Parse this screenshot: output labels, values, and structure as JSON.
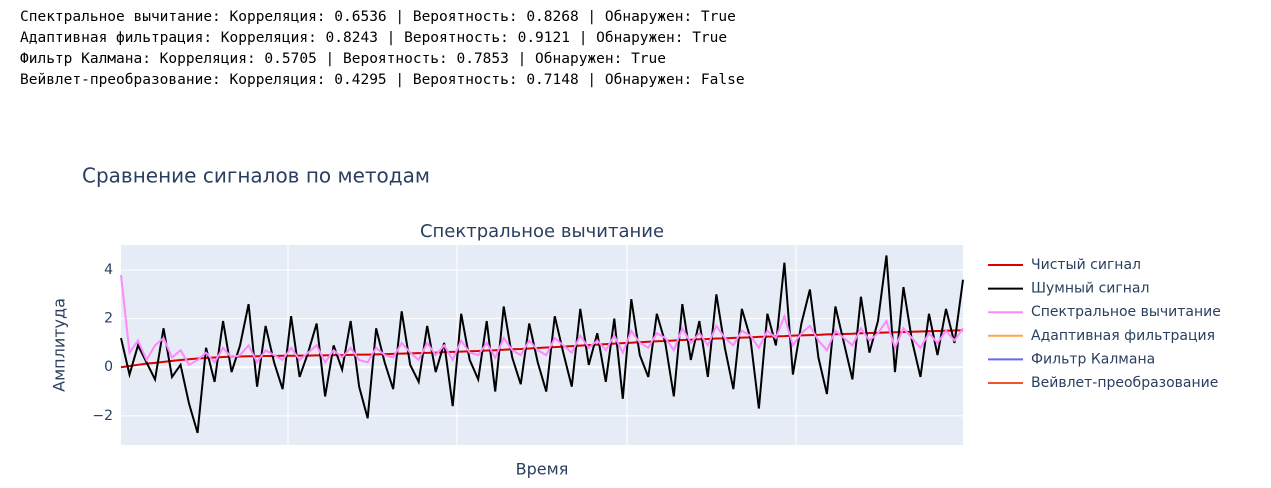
{
  "report": {
    "lines": [
      "Спектральное вычитание: Корреляция: 0.6536 | Вероятность: 0.8268 | Обнаружен: True",
      "Адаптивная фильтрация: Корреляция: 0.8243 | Вероятность: 0.9121 | Обнаружен: True",
      "Фильтр Калмана: Корреляция: 0.5705 | Вероятность: 0.7853 | Обнаружен: True",
      "Вейвлет-преобразование: Корреляция: 0.4295 | Вероятность: 0.7148 | Обнаружен: False"
    ]
  },
  "chart_data": {
    "type": "line",
    "title": "Сравнение сигналов по методам",
    "subtitle": "Спектральное вычитание",
    "x_label": "Время",
    "y_label": "Амплитуда",
    "ylim": [
      -3.2,
      5.03
    ],
    "yticks": [
      {
        "value": -2,
        "label": "−2"
      },
      0,
      2,
      4
    ],
    "grid": true,
    "legend": "right",
    "series": [
      {
        "name": "Чистый сигнал",
        "color": "#dd0000",
        "values": [
          0.0,
          0.05,
          0.1,
          0.15,
          0.18,
          0.22,
          0.26,
          0.3,
          0.33,
          0.36,
          0.38,
          0.4,
          0.42,
          0.43,
          0.44,
          0.45,
          0.45,
          0.46,
          0.46,
          0.47,
          0.47,
          0.48,
          0.48,
          0.49,
          0.49,
          0.5,
          0.5,
          0.51,
          0.52,
          0.52,
          0.53,
          0.54,
          0.55,
          0.56,
          0.57,
          0.58,
          0.59,
          0.6,
          0.62,
          0.63,
          0.64,
          0.66,
          0.67,
          0.69,
          0.7,
          0.72,
          0.74,
          0.75,
          0.77,
          0.79,
          0.81,
          0.83,
          0.85,
          0.87,
          0.89,
          0.91,
          0.93,
          0.95,
          0.97,
          0.99,
          1.01,
          1.03,
          1.05,
          1.07,
          1.08,
          1.1,
          1.12,
          1.13,
          1.15,
          1.16,
          1.18,
          1.19,
          1.21,
          1.22,
          1.23,
          1.25,
          1.26,
          1.27,
          1.28,
          1.3,
          1.31,
          1.32,
          1.33,
          1.35,
          1.36,
          1.37,
          1.38,
          1.4,
          1.41,
          1.42,
          1.43,
          1.44,
          1.45,
          1.46,
          1.47,
          1.48,
          1.49,
          1.5,
          1.51,
          1.52
        ]
      },
      {
        "name": "Шумный сигнал",
        "color": "#000000",
        "values": [
          1.2,
          -0.3,
          0.9,
          0.2,
          -0.5,
          1.6,
          -0.4,
          0.1,
          -1.5,
          -2.7,
          0.8,
          -0.6,
          1.9,
          -0.2,
          0.9,
          2.6,
          -0.8,
          1.7,
          0.2,
          -0.9,
          2.1,
          -0.4,
          0.6,
          1.8,
          -1.2,
          0.9,
          -0.1,
          1.9,
          -0.8,
          -2.1,
          1.6,
          0.2,
          -0.9,
          2.3,
          0.1,
          -0.6,
          1.7,
          -0.2,
          1.0,
          -1.6,
          2.2,
          0.3,
          -0.5,
          1.9,
          -1.0,
          2.5,
          0.4,
          -0.7,
          1.8,
          0.2,
          -1.0,
          2.1,
          0.6,
          -0.8,
          2.4,
          0.1,
          1.4,
          -0.6,
          2.0,
          -1.3,
          2.8,
          0.5,
          -0.4,
          2.2,
          1.0,
          -1.2,
          2.6,
          0.3,
          1.9,
          -0.4,
          3.0,
          0.8,
          -0.9,
          2.4,
          1.2,
          -1.7,
          2.2,
          0.9,
          4.3,
          -0.3,
          1.8,
          3.2,
          0.4,
          -1.1,
          2.5,
          1.0,
          -0.5,
          2.9,
          0.6,
          1.9,
          4.6,
          -0.2,
          3.3,
          1.1,
          -0.4,
          2.2,
          0.5,
          2.4,
          1.0,
          3.6
        ]
      },
      {
        "name": "Спектральное вычитание",
        "color": "#ff88ff",
        "values": [
          3.8,
          0.6,
          1.1,
          0.3,
          0.9,
          1.2,
          0.4,
          0.7,
          0.1,
          0.3,
          0.6,
          0.2,
          0.8,
          0.4,
          0.5,
          0.9,
          0.2,
          0.7,
          0.5,
          0.3,
          0.8,
          0.3,
          0.6,
          0.9,
          0.2,
          0.7,
          0.4,
          0.8,
          0.3,
          0.2,
          0.8,
          0.5,
          0.4,
          1.0,
          0.6,
          0.3,
          1.0,
          0.5,
          0.9,
          0.3,
          1.1,
          0.6,
          0.5,
          1.0,
          0.4,
          1.2,
          0.7,
          0.5,
          1.1,
          0.7,
          0.5,
          1.2,
          0.9,
          0.6,
          1.3,
          0.8,
          1.1,
          0.7,
          1.3,
          0.6,
          1.5,
          1.0,
          0.8,
          1.4,
          1.2,
          0.7,
          1.6,
          1.0,
          1.4,
          0.9,
          1.7,
          1.2,
          0.9,
          1.5,
          1.3,
          0.8,
          1.5,
          1.2,
          2.1,
          0.9,
          1.4,
          1.7,
          1.1,
          0.7,
          1.5,
          1.2,
          0.9,
          1.6,
          1.1,
          1.4,
          1.9,
          0.8,
          1.6,
          1.2,
          0.8,
          1.4,
          1.0,
          1.5,
          1.1,
          1.6
        ]
      },
      {
        "name": "Адаптивная фильтрация",
        "color": "#ffa64d",
        "visible": false
      },
      {
        "name": "Фильтр Калмана",
        "color": "#6666ff",
        "visible": false
      },
      {
        "name": "Вейвлет-преобразование",
        "color": "#ee5533",
        "visible": false
      }
    ]
  }
}
